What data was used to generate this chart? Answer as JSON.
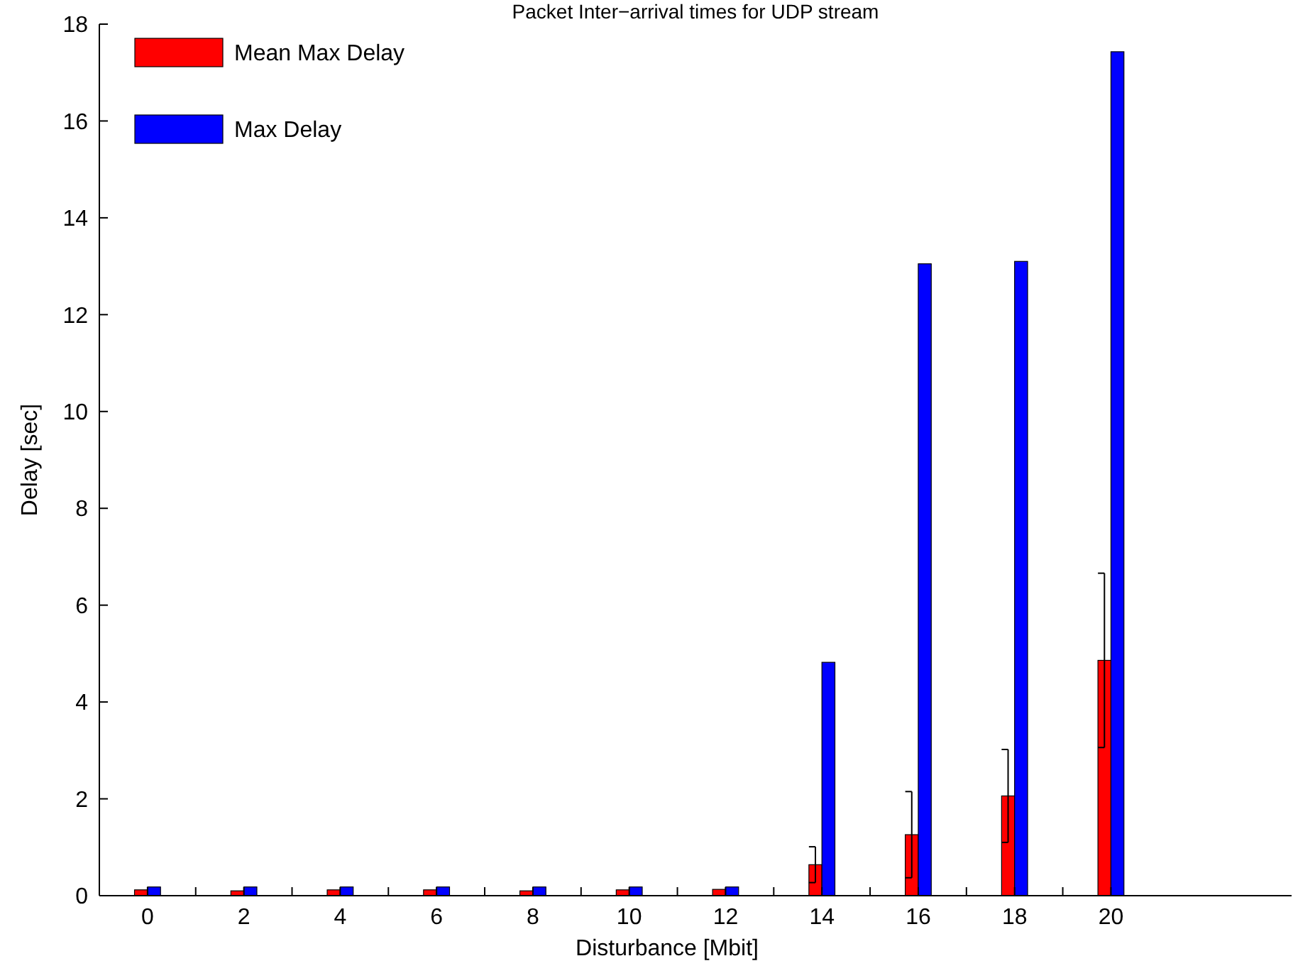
{
  "chart_data": {
    "type": "bar",
    "title": "Packet Inter−arrival times for UDP stream",
    "xlabel": "Disturbance [Mbit]",
    "ylabel": "Delay [sec]",
    "x": [
      0,
      2,
      4,
      6,
      8,
      10,
      12,
      14,
      16,
      18,
      20
    ],
    "series": [
      {
        "name": "Mean Max Delay",
        "color": "#ff0000",
        "values": [
          0.12,
          0.1,
          0.12,
          0.12,
          0.1,
          0.12,
          0.13,
          0.64,
          1.26,
          2.06,
          4.86
        ],
        "errors": [
          null,
          null,
          null,
          null,
          null,
          null,
          null,
          0.37,
          0.89,
          0.96,
          1.8
        ]
      },
      {
        "name": "Max Delay",
        "color": "#0000ff",
        "values": [
          0.18,
          0.18,
          0.18,
          0.18,
          0.18,
          0.18,
          0.18,
          4.82,
          13.05,
          13.1,
          17.43
        ]
      }
    ],
    "xlim": [
      -1,
      23.75
    ],
    "xticks": [
      0,
      {
        "value": 1,
        "label": null
      },
      2,
      {
        "value": 3,
        "label": null
      },
      4,
      {
        "value": 5,
        "label": null
      },
      6,
      {
        "value": 7,
        "label": null
      },
      8,
      {
        "value": 9,
        "label": null
      },
      10,
      {
        "value": 11,
        "label": null
      },
      12,
      {
        "value": 13,
        "label": null
      },
      14,
      {
        "value": 15,
        "label": null
      },
      16,
      {
        "value": 17,
        "label": null
      },
      18,
      {
        "value": 19,
        "label": null
      },
      20
    ],
    "ylim": [
      0,
      18
    ],
    "yticks": [
      0,
      2,
      4,
      6,
      8,
      10,
      12,
      14,
      16,
      18
    ],
    "grid": false,
    "legend": "top left"
  }
}
